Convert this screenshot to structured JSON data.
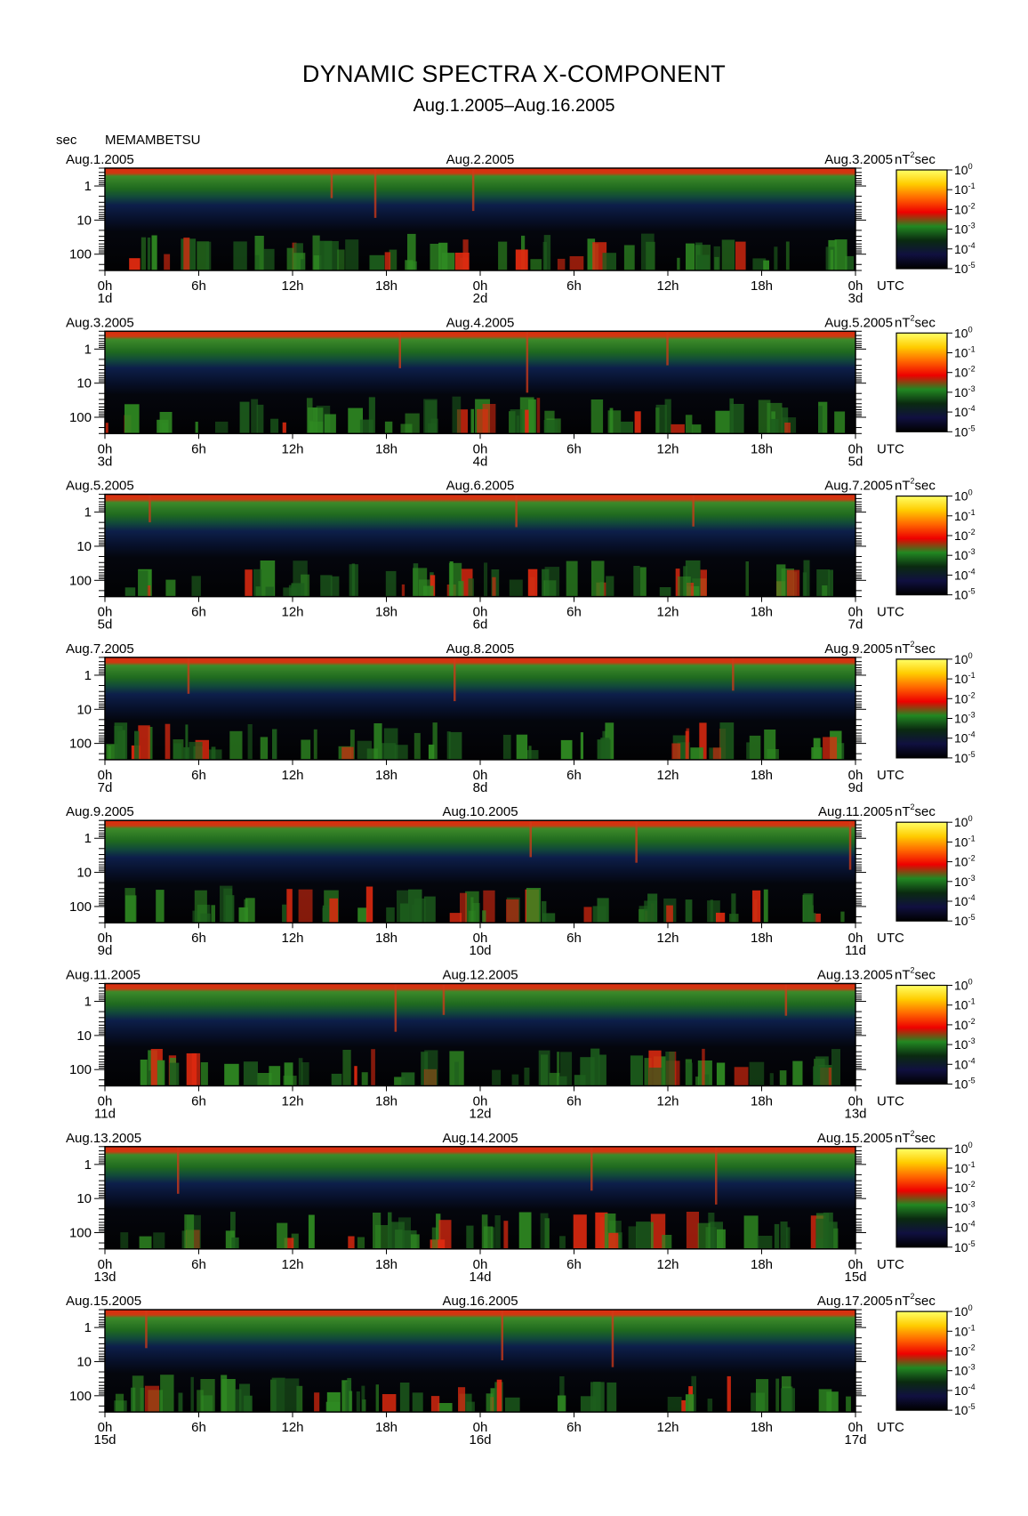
{
  "page": {
    "title": "DYNAMIC SPECTRA X-COMPONENT",
    "subtitle": "Aug.1.2005–Aug.16.2005"
  },
  "chart_data": {
    "type": "heatmap",
    "station": "MEMAMBETSU",
    "y_unit": "sec",
    "y_scale": "log",
    "y_ticks": [
      1,
      10,
      100
    ],
    "y_tick_labels": [
      "1",
      "10",
      "100"
    ],
    "y_range": [
      0.3,
      300
    ],
    "x_tick_labels": [
      "0h",
      "6h",
      "12h",
      "18h",
      "0h",
      "6h",
      "12h",
      "18h",
      "0h"
    ],
    "x_unit_label": "UTC",
    "colorbar": {
      "unit": "nT",
      "unit_superscript": "2",
      "unit_suffix": "sec",
      "ticks": [
        {
          "base": "10",
          "exp": "0"
        },
        {
          "base": "10",
          "exp": "-1"
        },
        {
          "base": "10",
          "exp": "-2"
        },
        {
          "base": "10",
          "exp": "-3"
        },
        {
          "base": "10",
          "exp": "-4"
        },
        {
          "base": "10",
          "exp": "-5"
        }
      ],
      "colors": [
        "#ffff66",
        "#ffcc00",
        "#ff6600",
        "#ee0000",
        "#228822",
        "#0a2a10",
        "#101040",
        "#000000"
      ]
    },
    "panels": [
      {
        "start_date": "Aug.1.2005",
        "mid_date": "Aug.2.2005",
        "end_date": "Aug.3.2005",
        "day_labels": [
          "1d",
          "2d",
          "3d"
        ]
      },
      {
        "start_date": "Aug.3.2005",
        "mid_date": "Aug.4.2005",
        "end_date": "Aug.5.2005",
        "day_labels": [
          "3d",
          "4d",
          "5d"
        ]
      },
      {
        "start_date": "Aug.5.2005",
        "mid_date": "Aug.6.2005",
        "end_date": "Aug.7.2005",
        "day_labels": [
          "5d",
          "6d",
          "7d"
        ]
      },
      {
        "start_date": "Aug.7.2005",
        "mid_date": "Aug.8.2005",
        "end_date": "Aug.9.2005",
        "day_labels": [
          "7d",
          "8d",
          "9d"
        ]
      },
      {
        "start_date": "Aug.9.2005",
        "mid_date": "Aug.10.2005",
        "end_date": "Aug.11.2005",
        "day_labels": [
          "9d",
          "10d",
          "11d"
        ]
      },
      {
        "start_date": "Aug.11.2005",
        "mid_date": "Aug.12.2005",
        "end_date": "Aug.13.2005",
        "day_labels": [
          "11d",
          "12d",
          "13d"
        ]
      },
      {
        "start_date": "Aug.13.2005",
        "mid_date": "Aug.14.2005",
        "end_date": "Aug.15.2005",
        "day_labels": [
          "13d",
          "14d",
          "15d"
        ]
      },
      {
        "start_date": "Aug.15.2005",
        "mid_date": "Aug.16.2005",
        "end_date": "Aug.17.2005",
        "day_labels": [
          "15d",
          "16d",
          "17d"
        ]
      }
    ]
  }
}
